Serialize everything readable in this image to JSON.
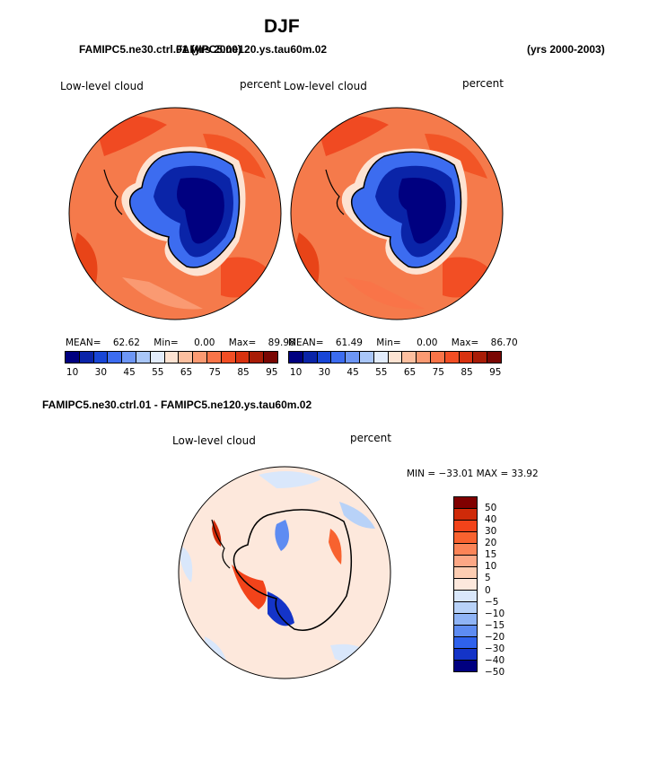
{
  "title": "DJF",
  "case_left": "FAMIPC5.ne30.ctrl.01 (yrs 2000)",
  "case_left_overlay": "FAMIPC5.ne120.ys.tau60m.02",
  "years_right": "(yrs 2000-2003)",
  "diff_title": "FAMIPC5.ne30.ctrl.01 - FAMIPC5.ne120.ys.tau60m.02",
  "panels": [
    {
      "label": "Low-level cloud",
      "units": "percent",
      "stats": {
        "mean_label": "MEAN=",
        "mean": "62.62",
        "min_label": "Min=",
        "min": "0.00",
        "max_label": "Max=",
        "max": "89.98"
      }
    },
    {
      "label": "Low-level cloud",
      "units": "percent",
      "stats": {
        "mean_label": "MEAN=",
        "mean": "61.49",
        "min_label": "Min=",
        "min": "0.00",
        "max_label": "Max=",
        "max": "86.70"
      }
    }
  ],
  "colorbar": {
    "colors": [
      "#000080",
      "#0a24a8",
      "#1846d6",
      "#3c6cf0",
      "#6d96f5",
      "#a9c6f8",
      "#e2ecfb",
      "#fde3d2",
      "#fcbf9f",
      "#fb9a72",
      "#f97448",
      "#f24e24",
      "#d8320f",
      "#a81c06",
      "#7a0703"
    ],
    "ticks": [
      "10",
      "30",
      "45",
      "55",
      "65",
      "75",
      "85",
      "95"
    ]
  },
  "diff_panel": {
    "label": "Low-level cloud",
    "units": "percent",
    "minmax": "MIN = −33.01  MAX =  33.92",
    "colors": [
      "#800000",
      "#cf2a09",
      "#f2431a",
      "#f8622f",
      "#fb8457",
      "#fca785",
      "#fdcdb2",
      "#fde8dc",
      "#d9e7fb",
      "#b8d2f8",
      "#8fb4f6",
      "#5e8cf2",
      "#2f62ec",
      "#1434c8",
      "#000080"
    ],
    "ticks": [
      "50",
      "40",
      "30",
      "20",
      "15",
      "10",
      "5",
      "0",
      "−5",
      "−10",
      "−15",
      "−20",
      "−30",
      "−40",
      "−50"
    ]
  },
  "chart_data": [
    {
      "type": "heatmap",
      "title": "Low-level cloud",
      "units": "percent",
      "mean": 62.62,
      "min": 0.0,
      "max": 89.98,
      "levels": [
        10,
        30,
        45,
        55,
        65,
        75,
        85,
        95
      ]
    },
    {
      "type": "heatmap",
      "title": "Low-level cloud",
      "units": "percent",
      "mean": 61.49,
      "min": 0.0,
      "max": 86.7,
      "levels": [
        10,
        30,
        45,
        55,
        65,
        75,
        85,
        95
      ]
    },
    {
      "type": "heatmap",
      "title": "Low-level cloud",
      "units": "percent",
      "min": -33.01,
      "max": 33.92,
      "levels": [
        -50,
        -40,
        -30,
        -20,
        -15,
        -10,
        -5,
        0,
        5,
        10,
        15,
        20,
        30,
        40,
        50
      ]
    }
  ]
}
